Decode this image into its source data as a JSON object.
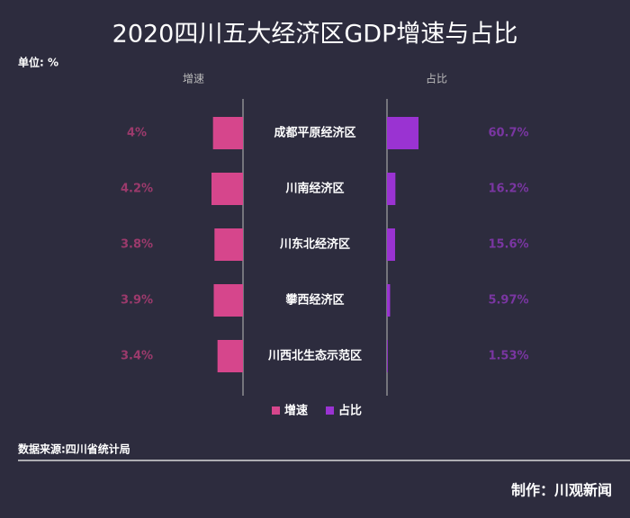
{
  "chart_data": {
    "type": "butterfly",
    "title": "2020四川五大经济区GDP增速与占比",
    "unit": "单位: %",
    "source": "数据来源:四川省统计局",
    "credit": "制作：川观新闻",
    "categories": [
      "成都平原经济区",
      "川南经济区",
      "川东北经济区",
      "攀西经济区",
      "川西北生态示范区"
    ],
    "series": [
      {
        "name": "增速",
        "color": "#d6468c",
        "label_color": "#9c3a6c",
        "values": [
          4,
          4.2,
          3.8,
          3.9,
          3.4
        ],
        "value_labels": [
          "4%",
          "4.2%",
          "3.8%",
          "3.9%",
          "3.4%"
        ]
      },
      {
        "name": "占比",
        "color": "#9a33d2",
        "label_color": "#7a36a2",
        "values": [
          60.7,
          16.2,
          15.6,
          5.97,
          1.53
        ],
        "value_labels": [
          "60.7%",
          "16.2%",
          "15.6%",
          "5.97%",
          "1.53%"
        ]
      }
    ]
  }
}
